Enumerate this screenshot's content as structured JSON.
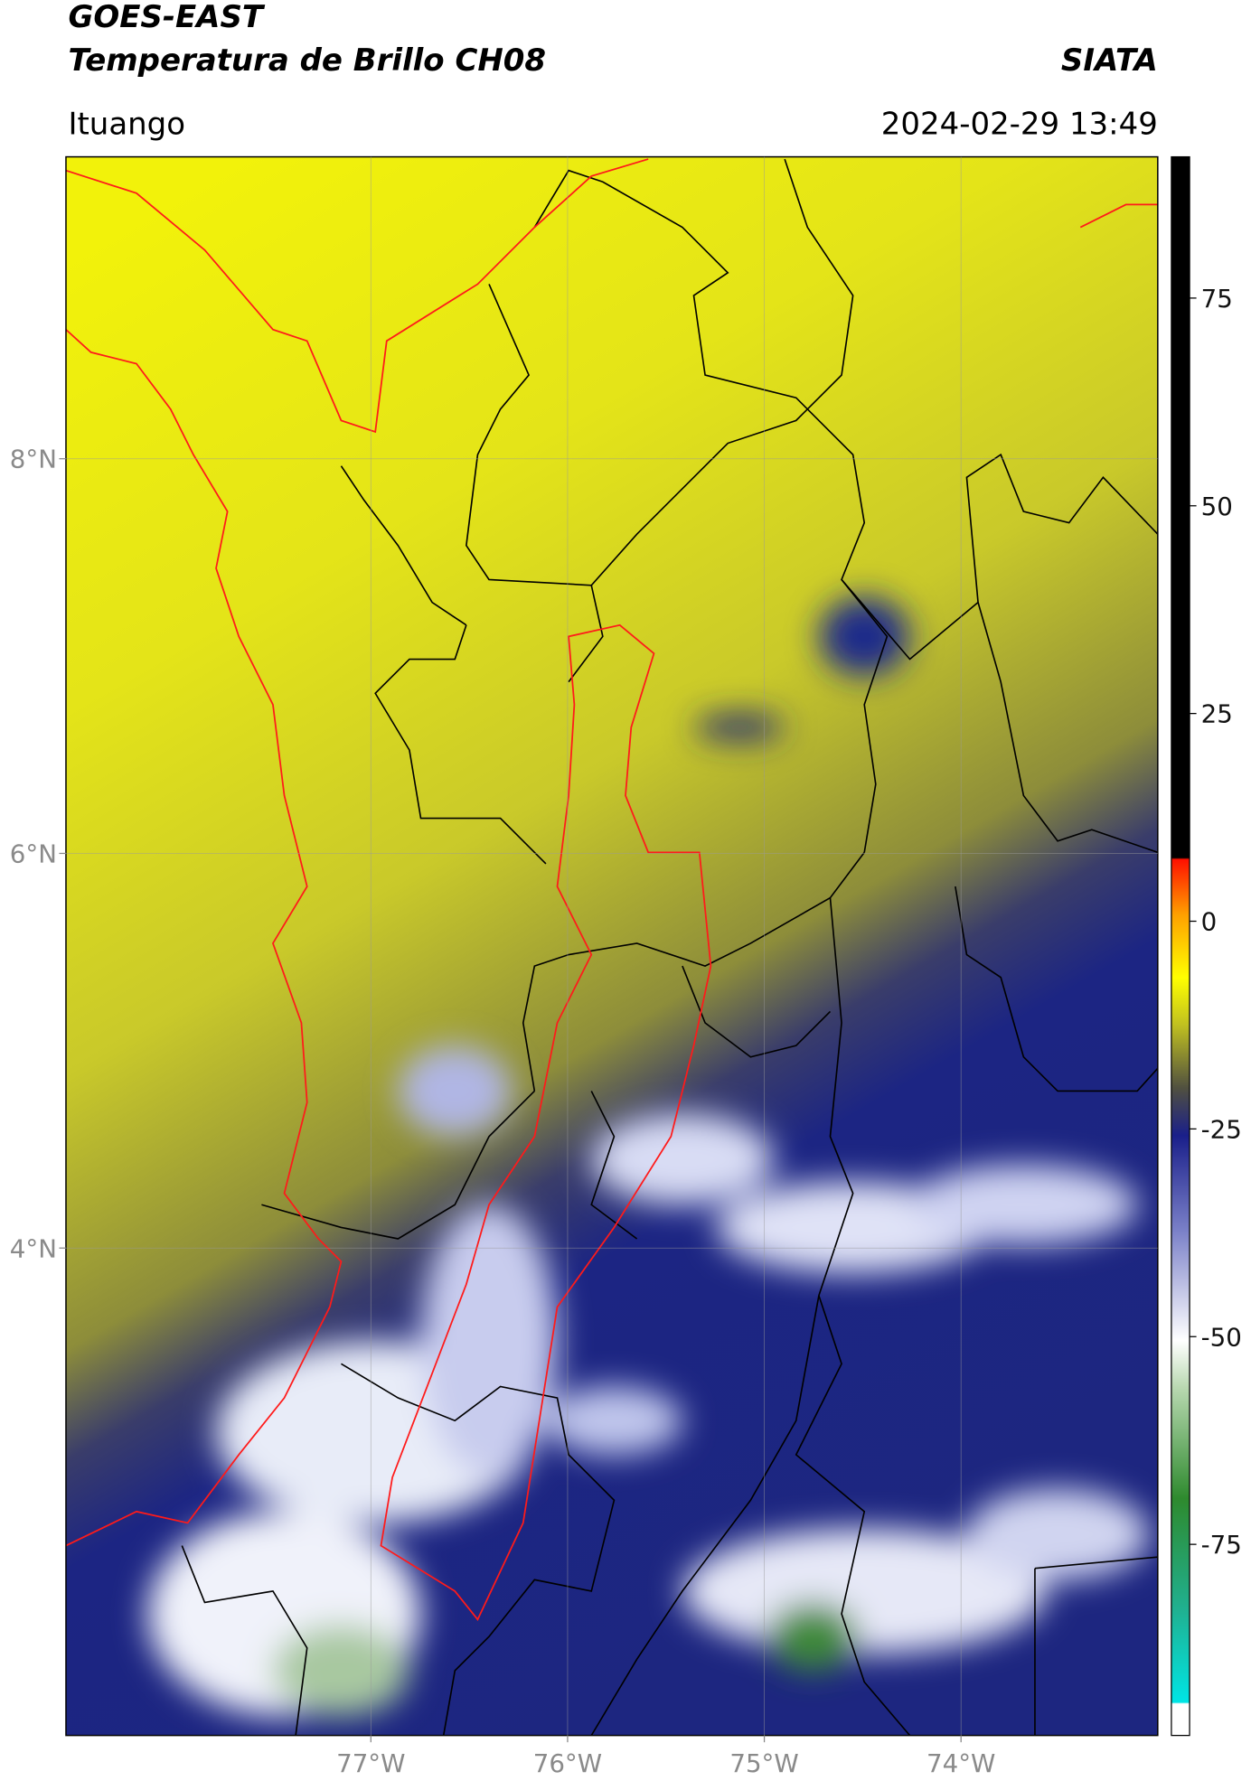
{
  "header": {
    "title": "GOES-EAST",
    "subtitle": "Temperatura de Brillo CH08",
    "agency": "SIATA",
    "location": "Ituango",
    "datetime": "2024-02-29 13:49"
  },
  "chart_data": {
    "type": "map",
    "xlim": [
      -78.55,
      -73.0
    ],
    "ylim": [
      1.53,
      9.53
    ],
    "xticks": [
      {
        "value": -77,
        "label": "77°W"
      },
      {
        "value": -76,
        "label": "76°W"
      },
      {
        "value": -75,
        "label": "75°W"
      },
      {
        "value": -74,
        "label": "74°W"
      }
    ],
    "yticks": [
      {
        "value": 8,
        "label": "8°N"
      },
      {
        "value": 6,
        "label": "6°N"
      },
      {
        "value": 4,
        "label": "4°N"
      }
    ],
    "grid": true,
    "colorbar": {
      "lim": [
        -98,
        92
      ],
      "ticks": [
        75,
        50,
        25,
        0,
        -25,
        -50,
        -75
      ]
    }
  }
}
